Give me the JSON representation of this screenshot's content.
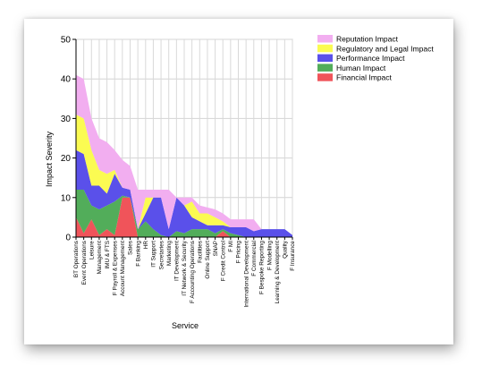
{
  "chart_data": {
    "type": "area",
    "stacked": true,
    "title": "",
    "xlabel": "Service",
    "ylabel": "Impact Severity",
    "ylim": [
      0,
      50
    ],
    "y_ticks": [
      0,
      10,
      20,
      30,
      40,
      50
    ],
    "grid": true,
    "legend_position": "top-right",
    "categories": [
      "BT Operations",
      "Event Operations",
      "Leisure",
      "Management",
      "IMU & FTS",
      "F Payroll & Expenses",
      "Account Management",
      "Sales",
      "F Banking",
      "HR",
      "IT Support",
      "Secretaries",
      "Marketing",
      "IT Development",
      "IT Network & Security",
      "F Accounting Operations",
      "Facilities",
      "Online Support",
      "SNAP",
      "F Credit Control",
      "F MI",
      "F Pricing",
      "International Development",
      "F Commercial",
      "F Bespoke Reporting",
      "F Modelling",
      "Learning & Development",
      "Quality",
      "F Insurance"
    ],
    "series": [
      {
        "name": "Financial Impact",
        "color": "#f0545a",
        "values": [
          5,
          1,
          4.5,
          0.5,
          2,
          0.5,
          10,
          10,
          0,
          0,
          0,
          0,
          0,
          0,
          0,
          0,
          0,
          0,
          0,
          1.5,
          0,
          0,
          0,
          0,
          0,
          0,
          0,
          0,
          0
        ]
      },
      {
        "name": "Human Impact",
        "color": "#52ad5a",
        "values": [
          7,
          11,
          3.5,
          6.5,
          6,
          8.5,
          0.5,
          0,
          2,
          4,
          2,
          0.5,
          0,
          1.5,
          1,
          2,
          2,
          2,
          1,
          0.5,
          1,
          0.5,
          0,
          0,
          0,
          0,
          0,
          0,
          0
        ]
      },
      {
        "name": "Performance Impact",
        "color": "#5a50ea",
        "values": [
          10,
          9,
          5,
          6,
          3,
          7,
          2,
          2,
          0,
          2,
          8,
          9.5,
          2,
          8.5,
          7,
          3,
          2,
          1,
          2,
          1,
          1.5,
          2,
          2.5,
          1.5,
          2,
          2,
          2,
          2,
          0.5
        ]
      },
      {
        "name": "Regulatory and Legal Impact",
        "color": "#fbfb52",
        "values": [
          9,
          9,
          9,
          4,
          5,
          1,
          0,
          0,
          0,
          4,
          0,
          0,
          0,
          0,
          0,
          4,
          2,
          3,
          2,
          1,
          0,
          0,
          0,
          0,
          0,
          0,
          0,
          0,
          0
        ]
      },
      {
        "name": "Reputation Impact",
        "color": "#f2aef0",
        "values": [
          10,
          10,
          8,
          8,
          8,
          5,
          7,
          6,
          10,
          2,
          2,
          2,
          10,
          0,
          2,
          1,
          2,
          1.5,
          2,
          2,
          2,
          2,
          2,
          3,
          0,
          0,
          0,
          0,
          0
        ]
      }
    ],
    "legend_order": [
      "Reputation Impact",
      "Regulatory and Legal Impact",
      "Performance Impact",
      "Human Impact",
      "Financial Impact"
    ]
  }
}
